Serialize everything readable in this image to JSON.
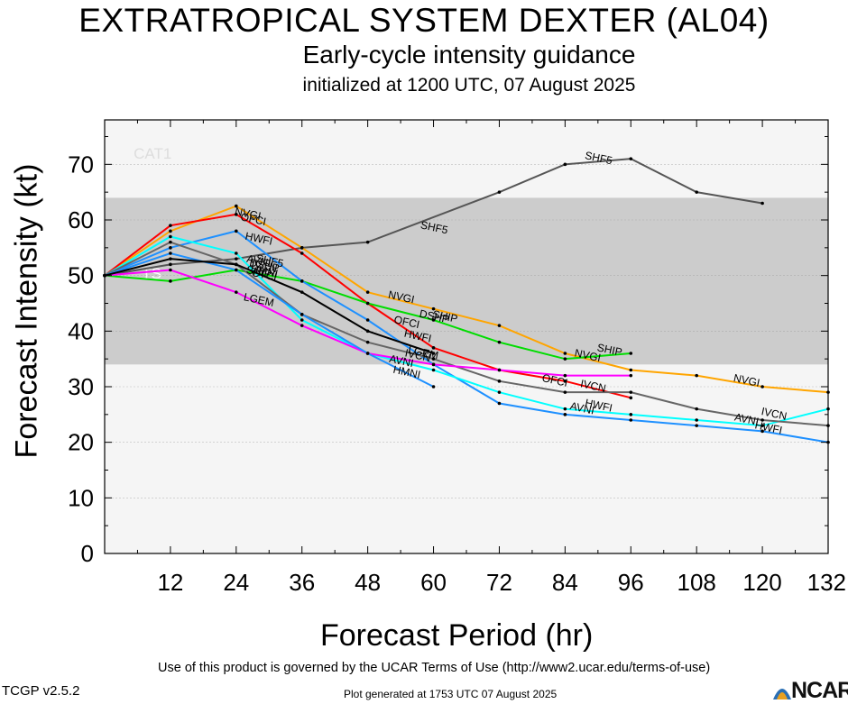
{
  "header": {
    "title": "EXTRATROPICAL SYSTEM DEXTER (AL04)",
    "subtitle": "Early-cycle intensity guidance",
    "initialized": "initialized at 1200 UTC, 07 August 2025"
  },
  "footer": {
    "terms": "Use of this product is governed by the UCAR Terms of Use (http://www2.ucar.edu/terms-of-use)",
    "version": "TCGP v2.5.2",
    "generated": "Plot generated at 1753 UTC   07 August 2025",
    "logo_text": "NCAR"
  },
  "chart_data": {
    "type": "line",
    "xlabel": "Forecast Period (hr)",
    "ylabel": "Forecast Intensity (kt)",
    "xlim": [
      0,
      132
    ],
    "ylim": [
      0,
      78
    ],
    "xticks": [
      12,
      24,
      36,
      48,
      60,
      72,
      84,
      96,
      108,
      120,
      132
    ],
    "yticks": [
      0,
      10,
      20,
      30,
      40,
      50,
      60,
      70
    ],
    "grid": true,
    "bands": [
      {
        "label": "TS",
        "from": 34,
        "to": 64,
        "color": "#cccccc"
      },
      {
        "label": "CAT1",
        "from": 64,
        "to": 78,
        "color": "#f5f5f5"
      }
    ],
    "below_band_color": "#f5f5f5",
    "series": [
      {
        "name": "SHF5",
        "color": "#555555",
        "points": [
          [
            0,
            50
          ],
          [
            12,
            52
          ],
          [
            24,
            53
          ],
          [
            36,
            55
          ],
          [
            48,
            56
          ],
          [
            72,
            65
          ],
          [
            84,
            70
          ],
          [
            96,
            71
          ],
          [
            108,
            65
          ],
          [
            120,
            63
          ]
        ],
        "labels": [
          {
            "text": "SHF5",
            "at": [
              30,
              52
            ]
          },
          {
            "text": "SHF5",
            "at": [
              60,
              58
            ]
          },
          {
            "text": "SHF5",
            "at": [
              90,
              70.5
            ]
          }
        ]
      },
      {
        "name": "NVGI",
        "color": "#ffa500",
        "points": [
          [
            0,
            50
          ],
          [
            12,
            58
          ],
          [
            24,
            62.5
          ],
          [
            36,
            55
          ],
          [
            48,
            47
          ],
          [
            60,
            44
          ],
          [
            72,
            41
          ],
          [
            84,
            36
          ],
          [
            96,
            33
          ],
          [
            108,
            32
          ],
          [
            120,
            30
          ],
          [
            132,
            29
          ]
        ],
        "labels": [
          {
            "text": "NVGI",
            "at": [
              26,
              60.5
            ]
          },
          {
            "text": "NVGI",
            "at": [
              54,
              45.5
            ]
          },
          {
            "text": "NVGI",
            "at": [
              88,
              35
            ]
          },
          {
            "text": "NVGI",
            "at": [
              117,
              30.5
            ]
          }
        ]
      },
      {
        "name": "OFCI",
        "color": "#ff0000",
        "points": [
          [
            0,
            50
          ],
          [
            12,
            59
          ],
          [
            24,
            61
          ],
          [
            36,
            54
          ],
          [
            48,
            45
          ],
          [
            60,
            37
          ],
          [
            72,
            33
          ],
          [
            84,
            31
          ],
          [
            96,
            28
          ]
        ],
        "labels": [
          {
            "text": "OFCI",
            "at": [
              27,
              59.5
            ]
          },
          {
            "text": "OFCI",
            "at": [
              55,
              41
            ]
          },
          {
            "text": "OFCI",
            "at": [
              82,
              30.5
            ]
          }
        ]
      },
      {
        "name": "SHIP",
        "color": "#00dd00",
        "points": [
          [
            0,
            50
          ],
          [
            12,
            49
          ],
          [
            24,
            51
          ],
          [
            36,
            49
          ],
          [
            48,
            45
          ],
          [
            60,
            42
          ],
          [
            72,
            38
          ],
          [
            84,
            35
          ],
          [
            96,
            36
          ]
        ],
        "labels": [
          {
            "text": "SHIP",
            "at": [
              28,
              50
            ]
          },
          {
            "text": "SHIP",
            "at": [
              62,
              42
            ]
          },
          {
            "text": "SHIP",
            "at": [
              92,
              36
            ]
          }
        ]
      },
      {
        "name": "HWFI",
        "color": "#1e90ff",
        "points": [
          [
            0,
            50
          ],
          [
            12,
            55
          ],
          [
            24,
            58
          ],
          [
            36,
            49
          ],
          [
            48,
            42
          ],
          [
            60,
            34
          ],
          [
            72,
            27
          ],
          [
            84,
            25
          ],
          [
            96,
            24
          ],
          [
            108,
            23
          ],
          [
            120,
            22
          ],
          [
            132,
            20
          ]
        ],
        "labels": [
          {
            "text": "HWFI",
            "at": [
              28,
              56
            ]
          },
          {
            "text": "HWFI",
            "at": [
              57,
              38.5
            ]
          },
          {
            "text": "HWFI",
            "at": [
              90,
              26
            ]
          },
          {
            "text": "HWFI",
            "at": [
              121,
              22
            ]
          }
        ]
      },
      {
        "name": "AVNI",
        "color": "#00ffff",
        "points": [
          [
            0,
            50
          ],
          [
            12,
            57
          ],
          [
            24,
            54
          ],
          [
            36,
            42
          ],
          [
            48,
            36
          ],
          [
            60,
            33
          ],
          [
            72,
            29
          ],
          [
            84,
            26
          ],
          [
            96,
            25
          ],
          [
            108,
            24
          ],
          [
            120,
            23
          ],
          [
            132,
            26
          ]
        ],
        "labels": [
          {
            "text": "AVNI",
            "at": [
              28,
              52
            ]
          },
          {
            "text": "AVNI",
            "at": [
              54,
              34
            ]
          },
          {
            "text": "AVNI",
            "at": [
              87,
              25.5
            ]
          },
          {
            "text": "AVNI",
            "at": [
              117,
              23.5
            ]
          }
        ]
      },
      {
        "name": "IVCN",
        "color": "#666666",
        "points": [
          [
            0,
            50
          ],
          [
            12,
            56
          ],
          [
            24,
            52
          ],
          [
            36,
            43
          ],
          [
            48,
            38
          ],
          [
            60,
            35
          ],
          [
            72,
            31
          ],
          [
            84,
            29
          ],
          [
            96,
            29
          ],
          [
            108,
            26
          ],
          [
            120,
            24
          ],
          [
            132,
            23
          ]
        ],
        "labels": [
          {
            "text": "IVCN",
            "at": [
              29,
              51
            ]
          },
          {
            "text": "IVCN",
            "at": [
              57,
              35
            ]
          },
          {
            "text": "IVCN",
            "at": [
              89,
              29.5
            ]
          },
          {
            "text": "IVCN",
            "at": [
              122,
              24.5
            ]
          }
        ]
      },
      {
        "name": "LGEM",
        "color": "#ff00ff",
        "points": [
          [
            0,
            50
          ],
          [
            12,
            51
          ],
          [
            24,
            47
          ],
          [
            36,
            41
          ],
          [
            48,
            36
          ],
          [
            60,
            34
          ],
          [
            72,
            33
          ],
          [
            84,
            32
          ],
          [
            96,
            32
          ]
        ],
        "labels": [
          {
            "text": "LGEM",
            "at": [
              28,
              45
            ]
          },
          {
            "text": "LGEM",
            "at": [
              58,
              35.5
            ]
          }
        ]
      },
      {
        "name": "HMNI",
        "color": "#1e90ff",
        "points": [
          [
            0,
            50
          ],
          [
            12,
            54
          ],
          [
            24,
            51
          ],
          [
            36,
            43
          ],
          [
            48,
            36
          ],
          [
            60,
            30
          ]
        ],
        "labels": [
          {
            "text": "HMNI",
            "at": [
              29,
              50.2
            ]
          },
          {
            "text": "HMNI",
            "at": [
              55,
              32
            ]
          }
        ]
      },
      {
        "name": "DSHP",
        "color": "#000000",
        "points": [
          [
            0,
            50
          ],
          [
            12,
            53
          ],
          [
            24,
            52
          ],
          [
            36,
            47
          ],
          [
            48,
            40
          ],
          [
            60,
            36
          ]
        ],
        "labels": [
          {
            "text": "DSHP",
            "at": [
              29,
              51.2
            ]
          },
          {
            "text": "DSHP",
            "at": [
              60,
              42
            ]
          },
          {
            "text": "CTCI",
            "at": [
              29,
              49.5
            ]
          }
        ]
      }
    ]
  }
}
